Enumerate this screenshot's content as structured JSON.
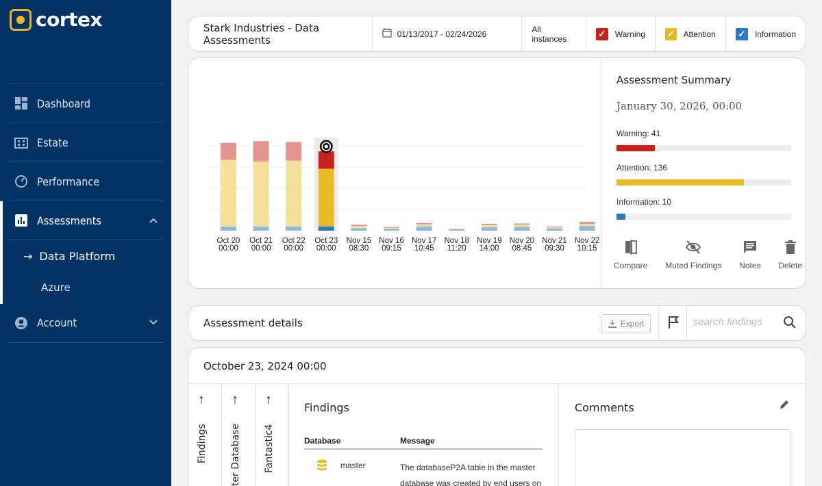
{
  "brand": {
    "name": "cortex",
    "accent": "#f0b429",
    "sidebar_bg": "#033364"
  },
  "nav": {
    "dashboard": "Dashboard",
    "estate": "Estate",
    "performance": "Performance",
    "assessments": "Assessments",
    "sub_data_platform": "Data Platform",
    "sub_azure": "Azure",
    "account": "Account"
  },
  "topbar": {
    "title": "Stark Industries - Data Assessments",
    "date_range": "01/13/2017 - 02/24/2026",
    "instances": "All instances",
    "warning": "Warning",
    "attention": "Attention",
    "information": "Information"
  },
  "chart_data": {
    "type": "bar",
    "stacked": true,
    "categories": [
      [
        "Oct 20",
        "00:00"
      ],
      [
        "Oct 21",
        "00:00"
      ],
      [
        "Oct 22",
        "00:00"
      ],
      [
        "Oct 23",
        "00:00"
      ],
      [
        "Nov 15",
        "08:30"
      ],
      [
        "Nov 16",
        "09:15"
      ],
      [
        "Nov 17",
        "10:45"
      ],
      [
        "Nov 18",
        "11:20"
      ],
      [
        "Nov 19",
        "14:00"
      ],
      [
        "Nov 20",
        "08:45"
      ],
      [
        "Nov 21",
        "09:30"
      ],
      [
        "Nov 22",
        "10:15"
      ]
    ],
    "series": [
      {
        "name": "Information",
        "color": "#2b7bc4",
        "faded": "#8db8e2",
        "values": [
          10,
          10,
          10,
          10,
          6,
          4,
          10,
          3,
          8,
          9,
          5,
          11
        ]
      },
      {
        "name": "Attention",
        "color": "#e8bb22",
        "faded": "#f4e199",
        "values": [
          157,
          153,
          155,
          136,
          5,
          3,
          5,
          1,
          5,
          5,
          3,
          5
        ]
      },
      {
        "name": "Warning",
        "color": "#c8221d",
        "faded": "#e49591",
        "values": [
          40,
          48,
          44,
          41,
          3,
          2,
          3,
          1,
          3,
          3,
          2,
          5
        ]
      }
    ],
    "selected_index": 3,
    "ylim": [
      0,
      250
    ]
  },
  "summary": {
    "title": "Assessment Summary",
    "date": "January 30, 2026, 00:00",
    "warning_label": "Warning: 41",
    "warning_fraction": 0.22,
    "attention_label": "Attention: 136",
    "attention_fraction": 0.73,
    "information_label": "Information: 10",
    "information_fraction": 0.05,
    "compare": "Compare",
    "muted": "Muted Findings",
    "notes": "Notes",
    "delete": "Delete"
  },
  "details": {
    "title": "Assessment details",
    "export": "Export",
    "search_placeholder": "search findings"
  },
  "bottom": {
    "title": "October 23, 2024 00:00",
    "col1": "Findings",
    "col2": "Master Database",
    "col3": "Fantastic4",
    "findings_title": "Findings",
    "head_db": "Database",
    "head_msg": "Message",
    "row_db": "master",
    "row_msg": "The databaseP2A table in the master database was created by end users on",
    "comments_title": "Comments"
  }
}
